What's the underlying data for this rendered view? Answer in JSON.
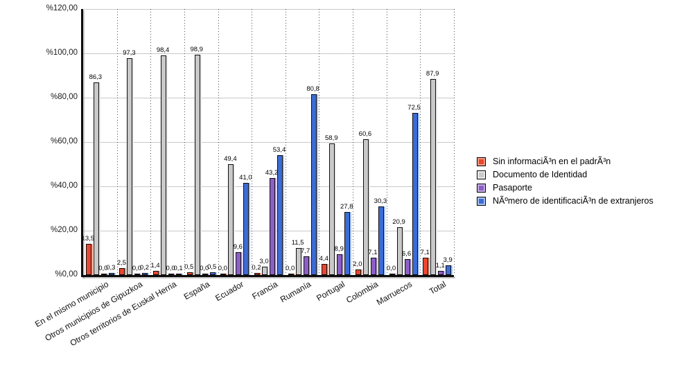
{
  "chart_data": {
    "type": "bar",
    "title": "",
    "categories": [
      "En el mismo municipio",
      "Otros municipios de Gipuzkoa",
      "Otros territorios de Euskal Herria",
      "España",
      "Ecuador",
      "Francia",
      "Rumanía",
      "Portugal",
      "Colombia",
      "Marruecos",
      "Total"
    ],
    "series": [
      {
        "name": "Sin informaciÃ³n en el padrÃ³n",
        "color": "#e8472f",
        "highlight": "#f29b85",
        "values": [
          13.5,
          2.5,
          1.4,
          0.5,
          0.0,
          0.2,
          0.0,
          4.4,
          2.0,
          0.0,
          7.1
        ]
      },
      {
        "name": "Documento de Identidad",
        "color": "#c9c9c9",
        "highlight": "#ebebeb",
        "values": [
          86.3,
          97.3,
          98.4,
          98.9,
          49.4,
          3.0,
          11.5,
          58.9,
          60.6,
          20.9,
          87.9
        ]
      },
      {
        "name": "Pasaporte",
        "color": "#8c5fc4",
        "highlight": "#c7ade6",
        "values": [
          0.0,
          0.0,
          0.0,
          0.0,
          9.6,
          43.2,
          7.7,
          8.9,
          7.1,
          6.6,
          1.1
        ]
      },
      {
        "name": "NÃºmero de identificaciÃ³n de extranjeros",
        "color": "#3d6cd6",
        "highlight": "#a7c5f1",
        "values": [
          0.3,
          0.2,
          0.1,
          0.5,
          41.0,
          53.4,
          80.8,
          27.8,
          30.3,
          72.5,
          3.9
        ]
      }
    ],
    "ylim": [
      0,
      120
    ],
    "y_tick_step": 20,
    "y_tick_labels": [
      "%120,00",
      "%100,00",
      "%80,00",
      "%60,00",
      "%40,00",
      "%20,00",
      "%0,00"
    ],
    "value_label_format": "decimal-comma-1",
    "grid": {
      "horizontal": "solid",
      "vertical": "dotted"
    },
    "legend_position": "right"
  }
}
